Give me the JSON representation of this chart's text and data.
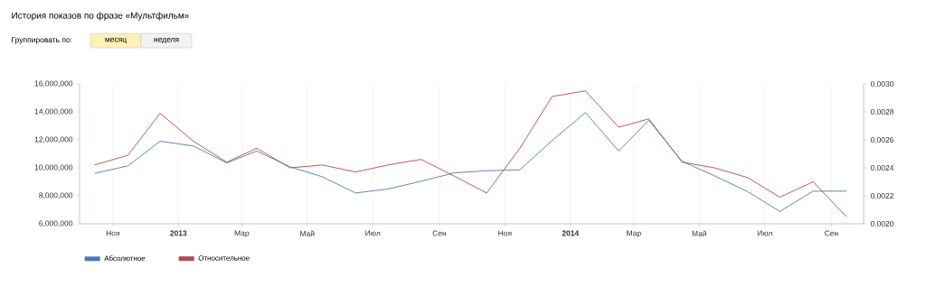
{
  "chart_data": {
    "type": "line",
    "title": "История показов по фразе «Мультфильм»",
    "annotations": [
      "Группировать по:",
      "месяц",
      "неделя"
    ],
    "x": [
      "2012-10-15",
      "2012-11-15",
      "2012-12-15",
      "2013-01-15",
      "2013-02-15",
      "2013-03-15",
      "2013-04-15",
      "2013-05-15",
      "2013-06-15",
      "2013-07-15",
      "2013-08-15",
      "2013-09-15",
      "2013-10-15",
      "2013-11-15",
      "2013-12-15",
      "2014-01-15",
      "2014-02-15",
      "2014-03-15",
      "2014-04-15",
      "2014-05-15",
      "2014-06-15",
      "2014-07-15",
      "2014-08-15",
      "2014-09-15"
    ],
    "series": [
      {
        "name": "Абсолютное",
        "color": "#4d79b3",
        "values": [
          9600000,
          10140000,
          11900000,
          11560000,
          10350000,
          11200000,
          10070000,
          9360000,
          8200000,
          8480000,
          9040000,
          9640000,
          9790000,
          9860000,
          11950000,
          13950000,
          11200000,
          13400000,
          10460000,
          9430000,
          8300000,
          6880000,
          8330000,
          8330000
        ]
      },
      {
        "name": "Относительное",
        "color": "#b5484b",
        "axis": "y2",
        "values": [
          0.00242,
          0.00249,
          0.00279,
          0.00259,
          0.00244,
          0.00254,
          0.0024,
          0.00242,
          0.00237,
          0.00242,
          0.00246,
          0.00234,
          0.00222,
          0.00254,
          0.00291,
          0.00295,
          0.00269,
          0.00275,
          0.00244,
          0.0024,
          0.00233,
          0.00219,
          0.0023,
          0.00205
        ]
      }
    ],
    "xlim": [
      "2012-10-01",
      "2014-10-01"
    ],
    "xticks": [
      {
        "value": "2012-11-01",
        "label": "Ноя"
      },
      {
        "value": "2013-01-01",
        "label": "2013"
      },
      {
        "value": "2013-03-01",
        "label": "Мар"
      },
      {
        "value": "2013-05-01",
        "label": "Май"
      },
      {
        "value": "2013-07-01",
        "label": "Июл"
      },
      {
        "value": "2013-09-01",
        "label": "Сен"
      },
      {
        "value": "2013-11-01",
        "label": "Ноя"
      },
      {
        "value": "2014-01-01",
        "label": "2014"
      },
      {
        "value": "2014-03-01",
        "label": "Мар"
      },
      {
        "value": "2014-05-01",
        "label": "Май"
      },
      {
        "value": "2014-07-01",
        "label": "Июл"
      },
      {
        "value": "2014-09-01",
        "label": "Сен"
      }
    ],
    "ylim": [
      6000000,
      16000000
    ],
    "yticks": [
      {
        "value": 6000000,
        "label": "6,000,000"
      },
      {
        "value": 8000000,
        "label": "8,000,000"
      },
      {
        "value": 10000000,
        "label": "10,000,000"
      },
      {
        "value": 12000000,
        "label": "12,000,000"
      },
      {
        "value": 14000000,
        "label": "14,000,000"
      },
      {
        "value": 16000000,
        "label": "16,000,000"
      }
    ],
    "y2lim": [
      0.002,
      0.003
    ],
    "y2ticks": [
      {
        "value": 0.002,
        "label": "0.0020"
      },
      {
        "value": 0.0022,
        "label": "0.0022"
      },
      {
        "value": 0.0024,
        "label": "0.0024"
      },
      {
        "value": 0.0026,
        "label": "0.0026"
      },
      {
        "value": 0.0028,
        "label": "0.0028"
      },
      {
        "value": 0.003,
        "label": "0.0030"
      }
    ],
    "grid": "x",
    "legend": "bottom left",
    "marker": "none",
    "line_style": "solid"
  }
}
